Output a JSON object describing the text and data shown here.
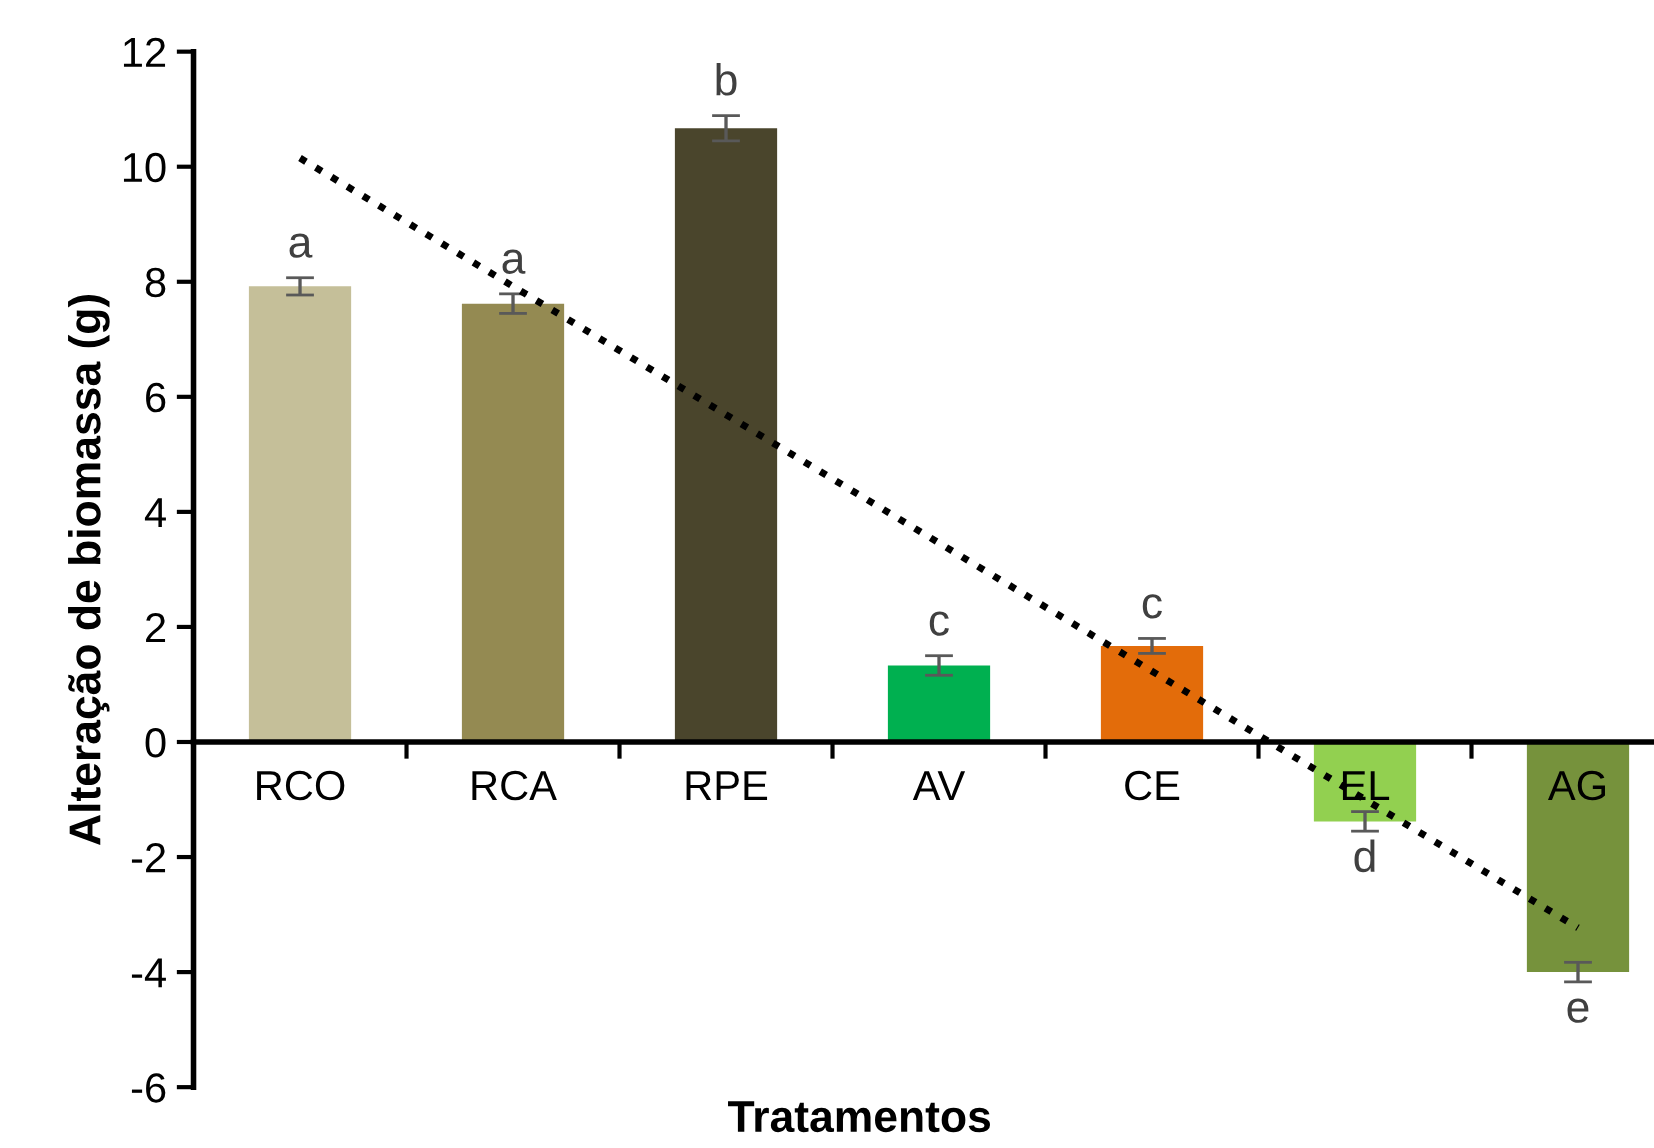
{
  "chart_data": {
    "type": "bar",
    "xlabel": "Tratamentos",
    "ylabel": "Alteração de biomassa (g)",
    "categories": [
      "RCO",
      "RCA",
      "RPE",
      "AV",
      "CE",
      "EL",
      "AG"
    ],
    "ylim": [
      -6,
      12
    ],
    "yticks": [
      -6,
      -4,
      -2,
      0,
      2,
      4,
      6,
      8,
      10,
      12
    ],
    "grid": false,
    "legend": false,
    "series": [
      {
        "values": [
          7.92,
          7.62,
          10.67,
          1.33,
          1.67,
          -1.38,
          -4.0
        ],
        "colors": [
          "#c5bf99",
          "#948a52",
          "#4a452c",
          "#00b050",
          "#e36c0a",
          "#92d050",
          "#76923c"
        ],
        "errors": [
          0.15,
          0.17,
          0.22,
          0.17,
          0.13,
          0.17,
          0.17
        ]
      },
      {
        "type": "line",
        "color": "#000000",
        "line_style": "dotted",
        "values": [
          10.15,
          7.92,
          5.69,
          3.46,
          1.23,
          -1.0,
          -3.23
        ]
      }
    ],
    "annotations": [
      "a",
      "a",
      "b",
      "c",
      "c",
      "d",
      "e"
    ]
  }
}
